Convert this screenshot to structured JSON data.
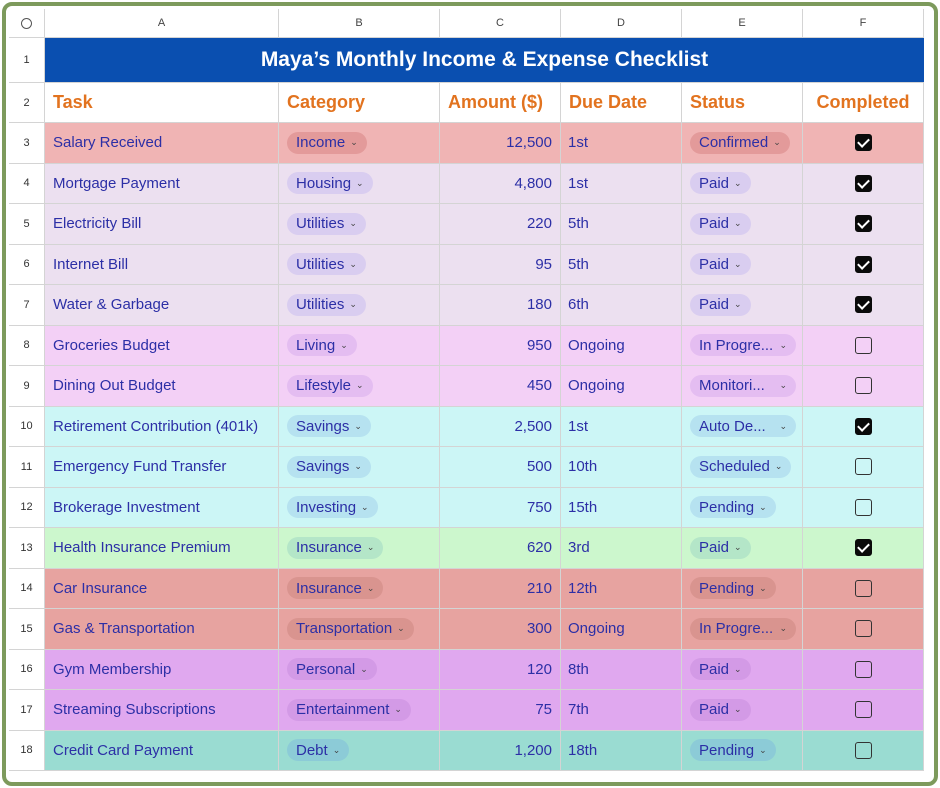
{
  "sheet": {
    "column_letters": [
      "A",
      "B",
      "C",
      "D",
      "E",
      "F"
    ],
    "row_numbers": [
      "1",
      "2",
      "3",
      "4",
      "5",
      "6",
      "7",
      "8",
      "9",
      "10",
      "11",
      "12",
      "13",
      "14",
      "15",
      "16",
      "17",
      "18"
    ],
    "title": "Maya’s Monthly Income & Expense Checklist",
    "headers": {
      "task": "Task",
      "category": "Category",
      "amount": "Amount ($)",
      "due_date": "Due Date",
      "status": "Status",
      "completed": "Completed"
    },
    "rows": [
      {
        "task": "Salary Received",
        "category": "Income",
        "amount": "12,500",
        "due": "1st",
        "status": "Confirmed",
        "completed": true,
        "row_color": "#f0b4b4",
        "chip_color": "#e39a9a"
      },
      {
        "task": "Mortgage Payment",
        "category": "Housing",
        "amount": "4,800",
        "due": "1st",
        "status": "Paid",
        "completed": true,
        "row_color": "#ece0f0",
        "chip_color": "#d9cdf0"
      },
      {
        "task": "Electricity Bill",
        "category": "Utilities",
        "amount": "220",
        "due": "5th",
        "status": "Paid",
        "completed": true,
        "row_color": "#ece0f0",
        "chip_color": "#d9cdf0"
      },
      {
        "task": "Internet Bill",
        "category": "Utilities",
        "amount": "95",
        "due": "5th",
        "status": "Paid",
        "completed": true,
        "row_color": "#ece0f0",
        "chip_color": "#d9cdf0"
      },
      {
        "task": "Water & Garbage",
        "category": "Utilities",
        "amount": "180",
        "due": "6th",
        "status": "Paid",
        "completed": true,
        "row_color": "#ece0f0",
        "chip_color": "#d9cdf0"
      },
      {
        "task": "Groceries Budget",
        "category": "Living",
        "amount": "950",
        "due": "Ongoing",
        "status": "In Progre...",
        "completed": false,
        "row_color": "#f3d0f6",
        "chip_color": "#e4bdf1"
      },
      {
        "task": "Dining Out Budget",
        "category": "Lifestyle",
        "amount": "450",
        "due": "Ongoing",
        "status": "Monitori...",
        "completed": false,
        "row_color": "#f3d0f6",
        "chip_color": "#e4bdf1"
      },
      {
        "task": "Retirement Contribution (401k)",
        "category": "Savings",
        "amount": "2,500",
        "due": "1st",
        "status": "Auto De...",
        "completed": true,
        "row_color": "#ccf6f6",
        "chip_color": "#b6e2f0"
      },
      {
        "task": "Emergency Fund Transfer",
        "category": "Savings",
        "amount": "500",
        "due": "10th",
        "status": "Scheduled",
        "completed": false,
        "row_color": "#ccf6f6",
        "chip_color": "#b6e2f0"
      },
      {
        "task": "Brokerage Investment",
        "category": "Investing",
        "amount": "750",
        "due": "15th",
        "status": "Pending",
        "completed": false,
        "row_color": "#ccf6f6",
        "chip_color": "#b6e2f0"
      },
      {
        "task": "Health Insurance Premium",
        "category": "Insurance",
        "amount": "620",
        "due": "3rd",
        "status": "Paid",
        "completed": true,
        "row_color": "#ccf7cd",
        "chip_color": "#b4e6c8"
      },
      {
        "task": "Car Insurance",
        "category": "Insurance",
        "amount": "210",
        "due": "12th",
        "status": "Pending",
        "completed": false,
        "row_color": "#e7a3a0",
        "chip_color": "#d9948f"
      },
      {
        "task": "Gas & Transportation",
        "category": "Transportation",
        "amount": "300",
        "due": "Ongoing",
        "status": "In Progre...",
        "completed": false,
        "row_color": "#e7a3a0",
        "chip_color": "#d9948f"
      },
      {
        "task": "Gym Membership",
        "category": "Personal",
        "amount": "120",
        "due": "8th",
        "status": "Paid",
        "completed": false,
        "row_color": "#e0a8ef",
        "chip_color": "#d39ae6"
      },
      {
        "task": "Streaming Subscriptions",
        "category": "Entertainment",
        "amount": "75",
        "due": "7th",
        "status": "Paid",
        "completed": false,
        "row_color": "#e0a8ef",
        "chip_color": "#d39ae6"
      },
      {
        "task": "Credit Card Payment",
        "category": "Debt",
        "amount": "1,200",
        "due": "18th",
        "status": "Pending",
        "completed": false,
        "row_color": "#9adcd2",
        "chip_color": "#8ccbd7"
      }
    ]
  },
  "colors": {
    "title_bg": "#0a4fb0",
    "header_text": "#e2731f",
    "body_text": "#2c2fa6",
    "frame_border": "#7d9a5c"
  }
}
